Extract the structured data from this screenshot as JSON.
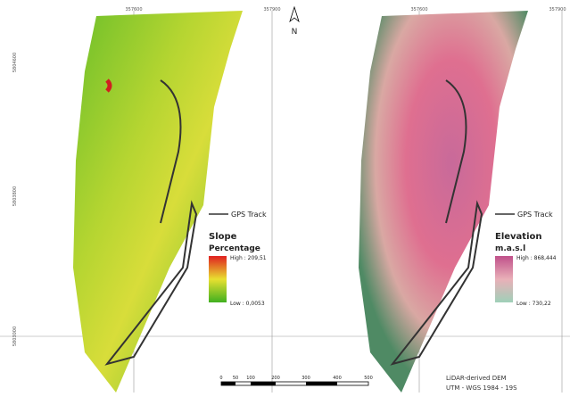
{
  "coords": {
    "top": [
      "357600",
      "357900",
      "357600",
      "357900"
    ],
    "left": [
      "5804600",
      "5803800",
      "5803000"
    ]
  },
  "north": "N",
  "slope_legend": {
    "track": "GPS Track",
    "title": "Slope",
    "subtitle": "Percentage",
    "high": "High : 209,51",
    "low": "Low : 0,0053"
  },
  "elev_legend": {
    "track": "GPS Track",
    "title": "Elevation",
    "subtitle": "m.a.s.l",
    "high": "High : 868,444",
    "low": "Low : 730,22"
  },
  "scale": [
    "0",
    "50",
    "100",
    "200",
    "300",
    "400",
    "500"
  ],
  "footer": [
    "LiDAR-derived DEM",
    "UTM - WGS 1984 - 19S"
  ]
}
